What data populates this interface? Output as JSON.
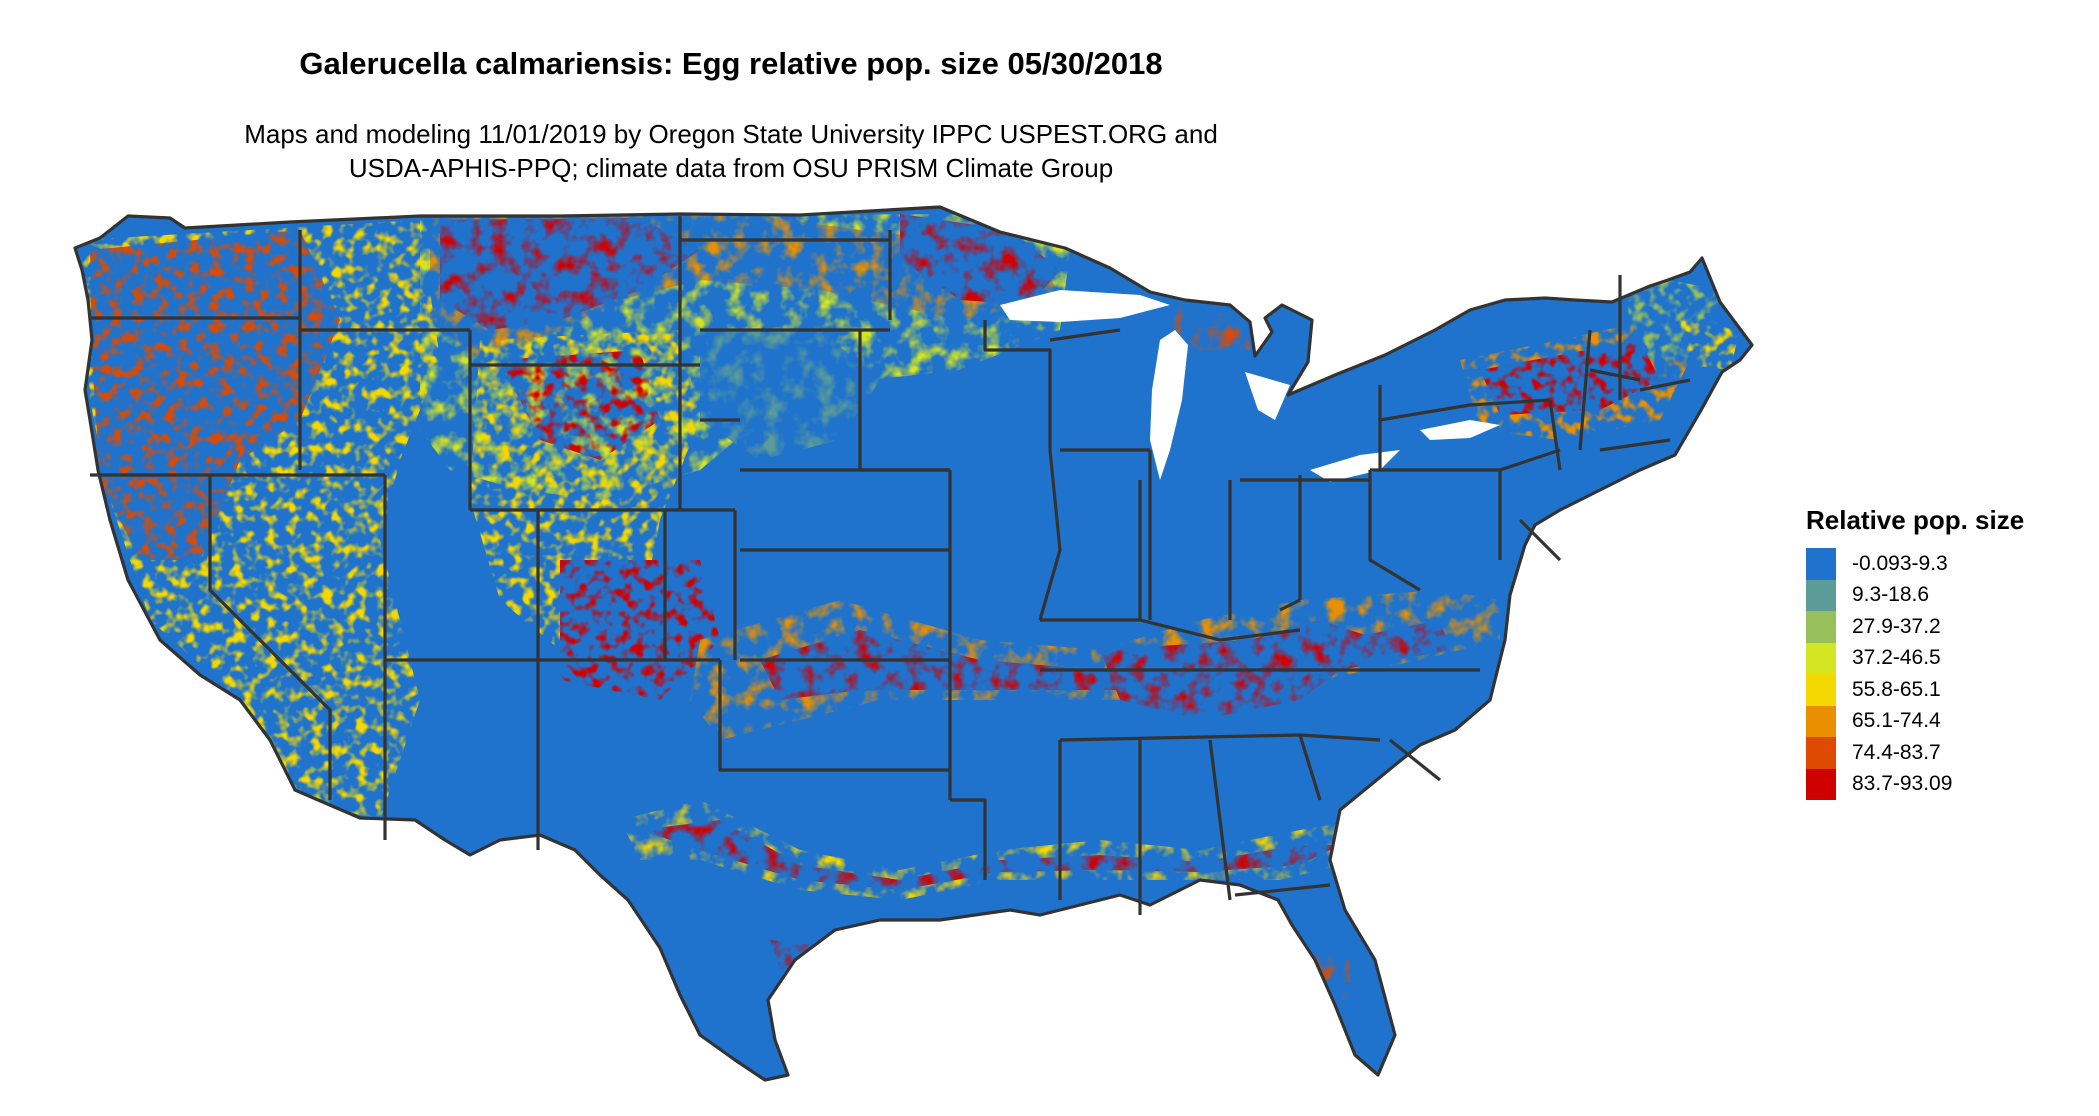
{
  "title": "Galerucella calmariensis: Egg relative pop. size 05/30/2018",
  "subtitle_line1": "Maps and modeling 11/01/2019 by Oregon State University IPPC USPEST.ORG and",
  "subtitle_line2": "USDA-APHIS-PPQ; climate data from OSU PRISM Climate Group",
  "legend": {
    "title": "Relative pop. size",
    "items": [
      {
        "label": "-0.093-9.3",
        "color": "#1f73cc"
      },
      {
        "label": "9.3-18.6",
        "color": "#5b9b98"
      },
      {
        "label": "27.9-37.2",
        "color": "#97bf5a"
      },
      {
        "label": "37.2-46.5",
        "color": "#d4e521"
      },
      {
        "label": "55.8-65.1",
        "color": "#f5d800"
      },
      {
        "label": "65.1-74.4",
        "color": "#ea9000"
      },
      {
        "label": "74.4-83.7",
        "color": "#dd4a00"
      },
      {
        "label": "83.7-93.09",
        "color": "#d10000"
      }
    ]
  },
  "map": {
    "region": "Contiguous United States",
    "base_color": "#1f73cc",
    "border_color": "#333333"
  }
}
